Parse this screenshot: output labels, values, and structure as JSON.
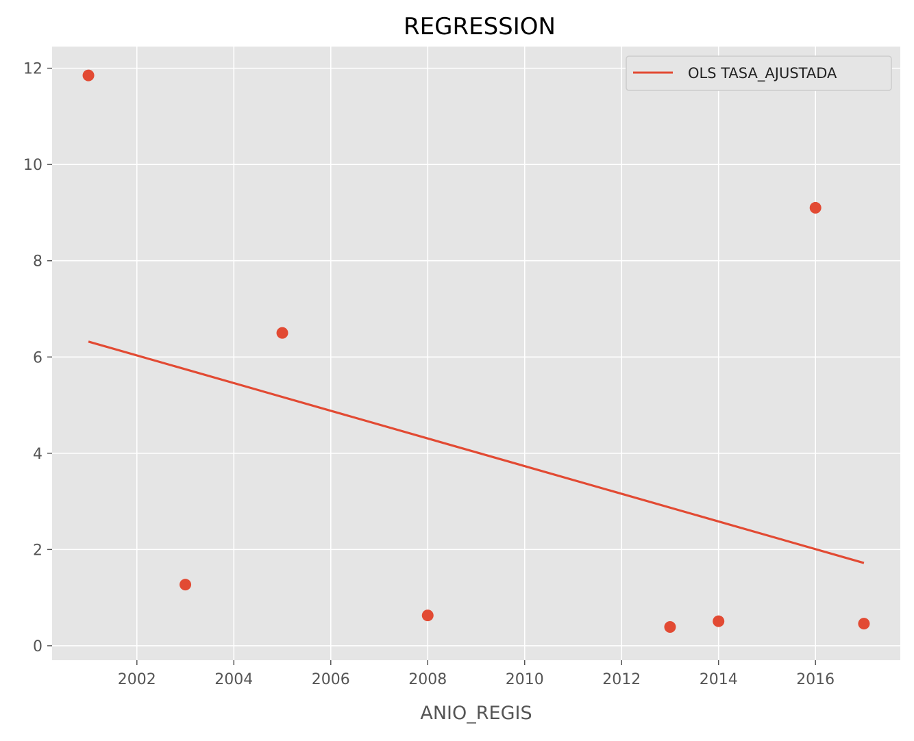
{
  "chart_data": {
    "type": "scatter",
    "title": "REGRESSION",
    "xlabel": "ANIO_REGIS",
    "ylabel": "",
    "xlim": [
      2000.25,
      2017.75
    ],
    "ylim": [
      -0.3,
      12.45
    ],
    "x_ticks": [
      2002,
      2004,
      2006,
      2008,
      2010,
      2012,
      2014,
      2016
    ],
    "y_ticks": [
      0,
      2,
      4,
      6,
      8,
      10,
      12
    ],
    "grid": true,
    "legend_position": "top-right",
    "colors": {
      "accent": "#E24A33",
      "plot_bg": "#E5E5E5",
      "grid": "#FFFFFF"
    },
    "points": {
      "x": [
        2001,
        2003,
        2005,
        2008,
        2013,
        2014,
        2016,
        2017
      ],
      "y": [
        11.85,
        1.27,
        6.5,
        0.63,
        0.39,
        0.51,
        9.1,
        0.46
      ]
    },
    "regression_line": {
      "name": "OLS TASA_AJUSTADA",
      "x": [
        2001,
        2017
      ],
      "y": [
        6.32,
        1.72
      ]
    }
  }
}
